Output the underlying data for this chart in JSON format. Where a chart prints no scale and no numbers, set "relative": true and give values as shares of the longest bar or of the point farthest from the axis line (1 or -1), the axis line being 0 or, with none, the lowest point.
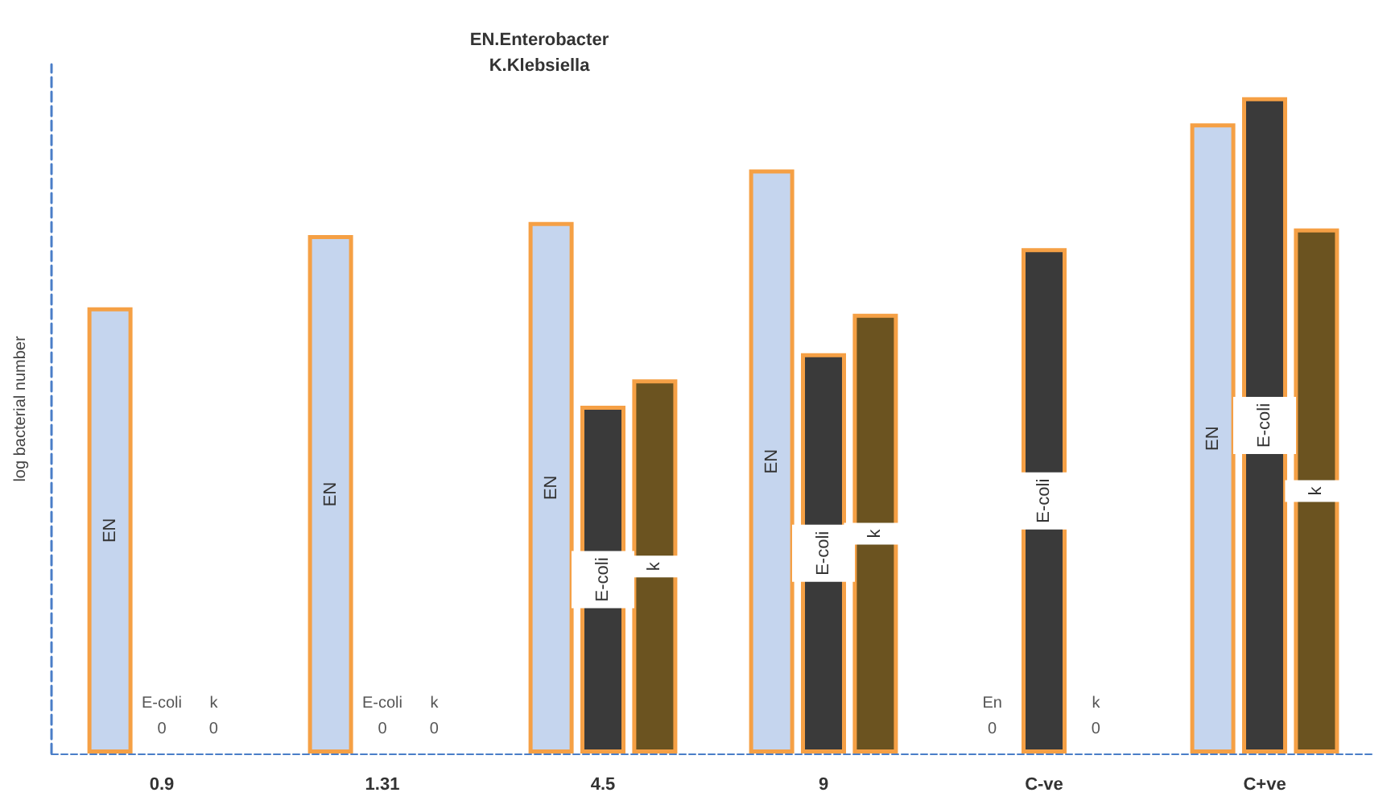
{
  "chart_data": {
    "type": "bar",
    "title": "EN.Enterobacter\nK.Klebsiella",
    "ylabel": "log bacterial number",
    "relative": true,
    "grid": false,
    "legend": false,
    "categories": [
      "0.9",
      "1.31",
      "4.5",
      "9",
      "C-ve",
      "C+ve"
    ],
    "series": [
      {
        "name": "EN",
        "color": "#c5d5ee",
        "values": [
          0.68,
          0.79,
          0.81,
          0.89,
          0,
          0.96
        ]
      },
      {
        "name": "E-coli",
        "color": "#3a3a3a",
        "values": [
          0,
          0,
          0.53,
          0.61,
          0.77,
          1
        ]
      },
      {
        "name": "k",
        "color": "#6b5320",
        "values": [
          0,
          0,
          0.57,
          0.67,
          0,
          0.8
        ]
      }
    ],
    "annotations": [
      "E-coli",
      "0",
      "k",
      "0",
      "E-coli",
      "0",
      "k",
      "0",
      "En",
      "0",
      "k",
      "0"
    ]
  }
}
